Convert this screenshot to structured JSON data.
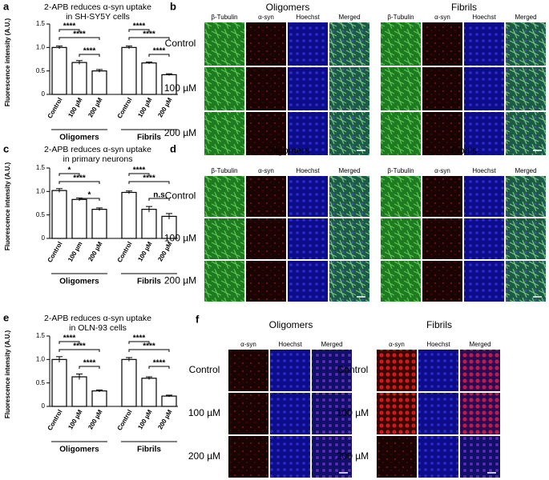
{
  "chart_data": [
    {
      "type": "bar",
      "panel": "a",
      "title_lines": [
        "2-APB reduces α-syn uptake",
        "in SH-SY5Y cells"
      ],
      "y_label": "Fluorescence intensity (A.U.)",
      "categories": [
        "Control",
        "100 µM",
        "200 µM",
        "Control",
        "100 µM",
        "200 µM"
      ],
      "groups": [
        "Oligomers",
        "Fibrils"
      ],
      "values": [
        1.0,
        0.68,
        0.5,
        1.0,
        0.67,
        0.42
      ],
      "errors": [
        0.03,
        0.04,
        0.03,
        0.03,
        0.02,
        0.02
      ],
      "color": "#ffffff",
      "ylim": [
        0,
        1.5
      ],
      "yticks": [
        0,
        0.5,
        {
          "value": 1,
          "label": "1.0"
        },
        1.5
      ],
      "annotations": [
        "****",
        "****",
        "****",
        "****",
        "****",
        "****"
      ]
    },
    {
      "type": "bar",
      "panel": "c",
      "title_lines": [
        "2-APB reduces α-syn uptake",
        "in primary neurons"
      ],
      "y_label": "Fluorescence intensity (A.U.)",
      "categories": [
        "Control",
        "100 µm",
        "200 µM",
        "Control",
        "100 µM",
        "200 µM"
      ],
      "groups": [
        "Oligomers",
        "Fibrils"
      ],
      "values": [
        1.02,
        0.83,
        0.62,
        0.98,
        0.62,
        0.47
      ],
      "errors": [
        0.04,
        0.03,
        0.03,
        0.03,
        0.06,
        0.06
      ],
      "color": "#ffffff",
      "ylim": [
        0,
        1.5
      ],
      "yticks": [
        0,
        0.5,
        {
          "value": 1,
          "label": "1.0"
        },
        1.5
      ],
      "annotations": [
        "*",
        "****",
        "*",
        "****",
        "****",
        "n.s"
      ]
    },
    {
      "type": "bar",
      "panel": "e",
      "title_lines": [
        "2-APB reduces α-syn uptake",
        "in OLN-93 cells"
      ],
      "y_label": "Fluorescence intensity (A.U.)",
      "categories": [
        "Control",
        "100 µM",
        "200 µM",
        "Control",
        "100 µM",
        "200 µM"
      ],
      "groups": [
        "Oligomers",
        "Fibrils"
      ],
      "values": [
        1.0,
        0.63,
        0.33,
        1.0,
        0.6,
        0.22
      ],
      "errors": [
        0.06,
        0.06,
        0.02,
        0.04,
        0.03,
        0.02
      ],
      "color": "#ffffff",
      "ylim": [
        0,
        1.5
      ],
      "yticks": [
        0,
        0.5,
        {
          "value": 1,
          "label": "1.0"
        },
        1.5
      ],
      "annotations": [
        "****",
        "****",
        "****",
        "****",
        "****",
        "****"
      ]
    }
  ],
  "image_panels": [
    {
      "panel": "b",
      "rows": [
        "Control",
        "100 µM",
        "200 µM"
      ],
      "groups": [
        {
          "title": "Oligomers",
          "columns": [
            "β-Tubulin",
            "α-syn",
            "Hoechst",
            "Merged"
          ]
        },
        {
          "title": "Fibrils",
          "columns": [
            "β-Tubulin",
            "α-syn",
            "Hoechst",
            "Merged"
          ]
        }
      ]
    },
    {
      "panel": "d",
      "rows": [
        "Control",
        "100 µM",
        "200 µM"
      ],
      "groups": [
        {
          "title": "Oligomers",
          "columns": [
            "β-Tubulin",
            "α-syn",
            "Hoechst",
            "Merged"
          ]
        },
        {
          "title": "Fibrils",
          "columns": [
            "β-Tubulin",
            "α-syn",
            "Hoechst",
            "Merged"
          ]
        }
      ]
    },
    {
      "panel": "f",
      "groups": [
        {
          "title": "Oligomers",
          "columns": [
            "α-syn",
            "Hoechst",
            "Merged"
          ],
          "rows": [
            "Control",
            "100 µM",
            "200 µM"
          ]
        },
        {
          "title": "Fibrils",
          "columns": [
            "α-syn",
            "Hoechst",
            "Merged"
          ],
          "rows": [
            "Control",
            "100 µM",
            "200 µM"
          ]
        }
      ]
    }
  ]
}
